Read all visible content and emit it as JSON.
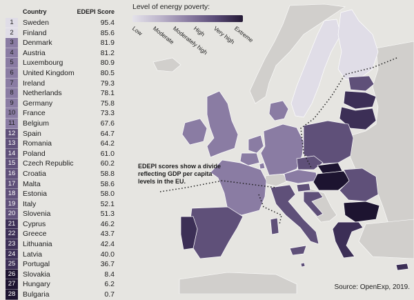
{
  "colors": {
    "background": "#e6e5e1",
    "land_outside": "#d1cfcc",
    "tier_low": "#e0dde7",
    "tier_moderate": "#b6aec8",
    "tier_moderately_high": "#8a7ca3",
    "tier_high": "#5f5079",
    "tier_very_high": "#3c2f56",
    "tier_extreme": "#1d1430"
  },
  "legend": {
    "title": "Level of energy poverty:",
    "labels": [
      "Low",
      "Moderate",
      "Moderately high",
      "High",
      "Very high",
      "Extreme"
    ]
  },
  "table": {
    "header_country": "Country",
    "header_score": "EDEPI Score",
    "rows": [
      {
        "rank": "1",
        "country": "Sweden",
        "score": "95.4",
        "tier": "low"
      },
      {
        "rank": "2",
        "country": "Finland",
        "score": "85.6",
        "tier": "low"
      },
      {
        "rank": "3",
        "country": "Denmark",
        "score": "81.9",
        "tier": "moderately_high"
      },
      {
        "rank": "4",
        "country": "Austria",
        "score": "81.2",
        "tier": "moderately_high"
      },
      {
        "rank": "5",
        "country": "Luxembourg",
        "score": "80.9",
        "tier": "moderately_high"
      },
      {
        "rank": "6",
        "country": "United Kingdom",
        "score": "80.5",
        "tier": "moderately_high"
      },
      {
        "rank": "7",
        "country": "Ireland",
        "score": "79.3",
        "tier": "moderately_high"
      },
      {
        "rank": "8",
        "country": "Netherlands",
        "score": "78.1",
        "tier": "moderately_high"
      },
      {
        "rank": "9",
        "country": "Germany",
        "score": "75.8",
        "tier": "moderately_high"
      },
      {
        "rank": "10",
        "country": "France",
        "score": "73.3",
        "tier": "moderately_high"
      },
      {
        "rank": "11",
        "country": "Belgium",
        "score": "67.6",
        "tier": "moderately_high"
      },
      {
        "rank": "12",
        "country": "Spain",
        "score": "64.7",
        "tier": "high"
      },
      {
        "rank": "13",
        "country": "Romania",
        "score": "64.2",
        "tier": "high"
      },
      {
        "rank": "14",
        "country": "Poland",
        "score": "61.0",
        "tier": "high"
      },
      {
        "rank": "15",
        "country": "Czech Republic",
        "score": "60.2",
        "tier": "high"
      },
      {
        "rank": "16",
        "country": "Croatia",
        "score": "58.8",
        "tier": "high"
      },
      {
        "rank": "17",
        "country": "Malta",
        "score": "58.6",
        "tier": "high"
      },
      {
        "rank": "18",
        "country": "Estonia",
        "score": "58.0",
        "tier": "high"
      },
      {
        "rank": "19",
        "country": "Italy",
        "score": "52.1",
        "tier": "high"
      },
      {
        "rank": "20",
        "country": "Slovenia",
        "score": "51.3",
        "tier": "high"
      },
      {
        "rank": "21",
        "country": "Cyprus",
        "score": "46.2",
        "tier": "very_high"
      },
      {
        "rank": "22",
        "country": "Greece",
        "score": "43.7",
        "tier": "very_high"
      },
      {
        "rank": "23",
        "country": "Lithuania",
        "score": "42.4",
        "tier": "very_high"
      },
      {
        "rank": "24",
        "country": "Latvia",
        "score": "40.0",
        "tier": "very_high"
      },
      {
        "rank": "25",
        "country": "Portugal",
        "score": "36.7",
        "tier": "very_high"
      },
      {
        "rank": "26",
        "country": "Slovakia",
        "score": "8.4",
        "tier": "extreme"
      },
      {
        "rank": "27",
        "country": "Hungary",
        "score": "6.2",
        "tier": "extreme"
      },
      {
        "rank": "28",
        "country": "Bulgaria",
        "score": "0.7",
        "tier": "extreme"
      }
    ]
  },
  "annotation": "EDEPI scores show a divide reflecting GDP per capita levels in the EU.",
  "source": "Source: OpenExp, 2019."
}
